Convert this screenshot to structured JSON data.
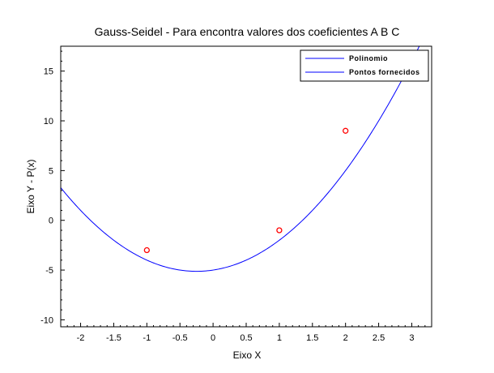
{
  "chart_data": {
    "type": "line",
    "title": "Gauss-Seidel - Para encontra valores dos coeficientes A B C",
    "xlabel": "Eixo X",
    "ylabel": "Eixo Y - P(x)",
    "xlim": [
      -2.3,
      3.3
    ],
    "ylim": [
      -10.7,
      17.5
    ],
    "x_ticks": [
      "-2",
      "-1.5",
      "-1",
      "-0.5",
      "0",
      "0.5",
      "1",
      "1.5",
      "2",
      "2.5",
      "3"
    ],
    "y_ticks": [
      "-10",
      "-5",
      "0",
      "5",
      "10",
      "15"
    ],
    "grid": false,
    "legend_position": "top-right",
    "series": [
      {
        "name": "Polinomio",
        "type": "line",
        "color": "#0000ff",
        "coefficients": {
          "a": 2,
          "b": 1,
          "c": -5
        },
        "x": [
          -2.3,
          -2.0,
          -1.5,
          -1.0,
          -0.5,
          -0.25,
          0.0,
          0.5,
          1.0,
          1.5,
          2.0,
          2.5
        ],
        "y": [
          3.28,
          1.0,
          -2.0,
          -4.0,
          -5.0,
          -5.125,
          -5.0,
          -4.0,
          -2.0,
          1.0,
          5.0,
          10.0
        ]
      },
      {
        "name": "Pontos fornecidos",
        "type": "scatter",
        "color": "#ff0000",
        "x": [
          -1,
          1,
          2
        ],
        "y": [
          -3,
          -1,
          9
        ]
      }
    ]
  }
}
